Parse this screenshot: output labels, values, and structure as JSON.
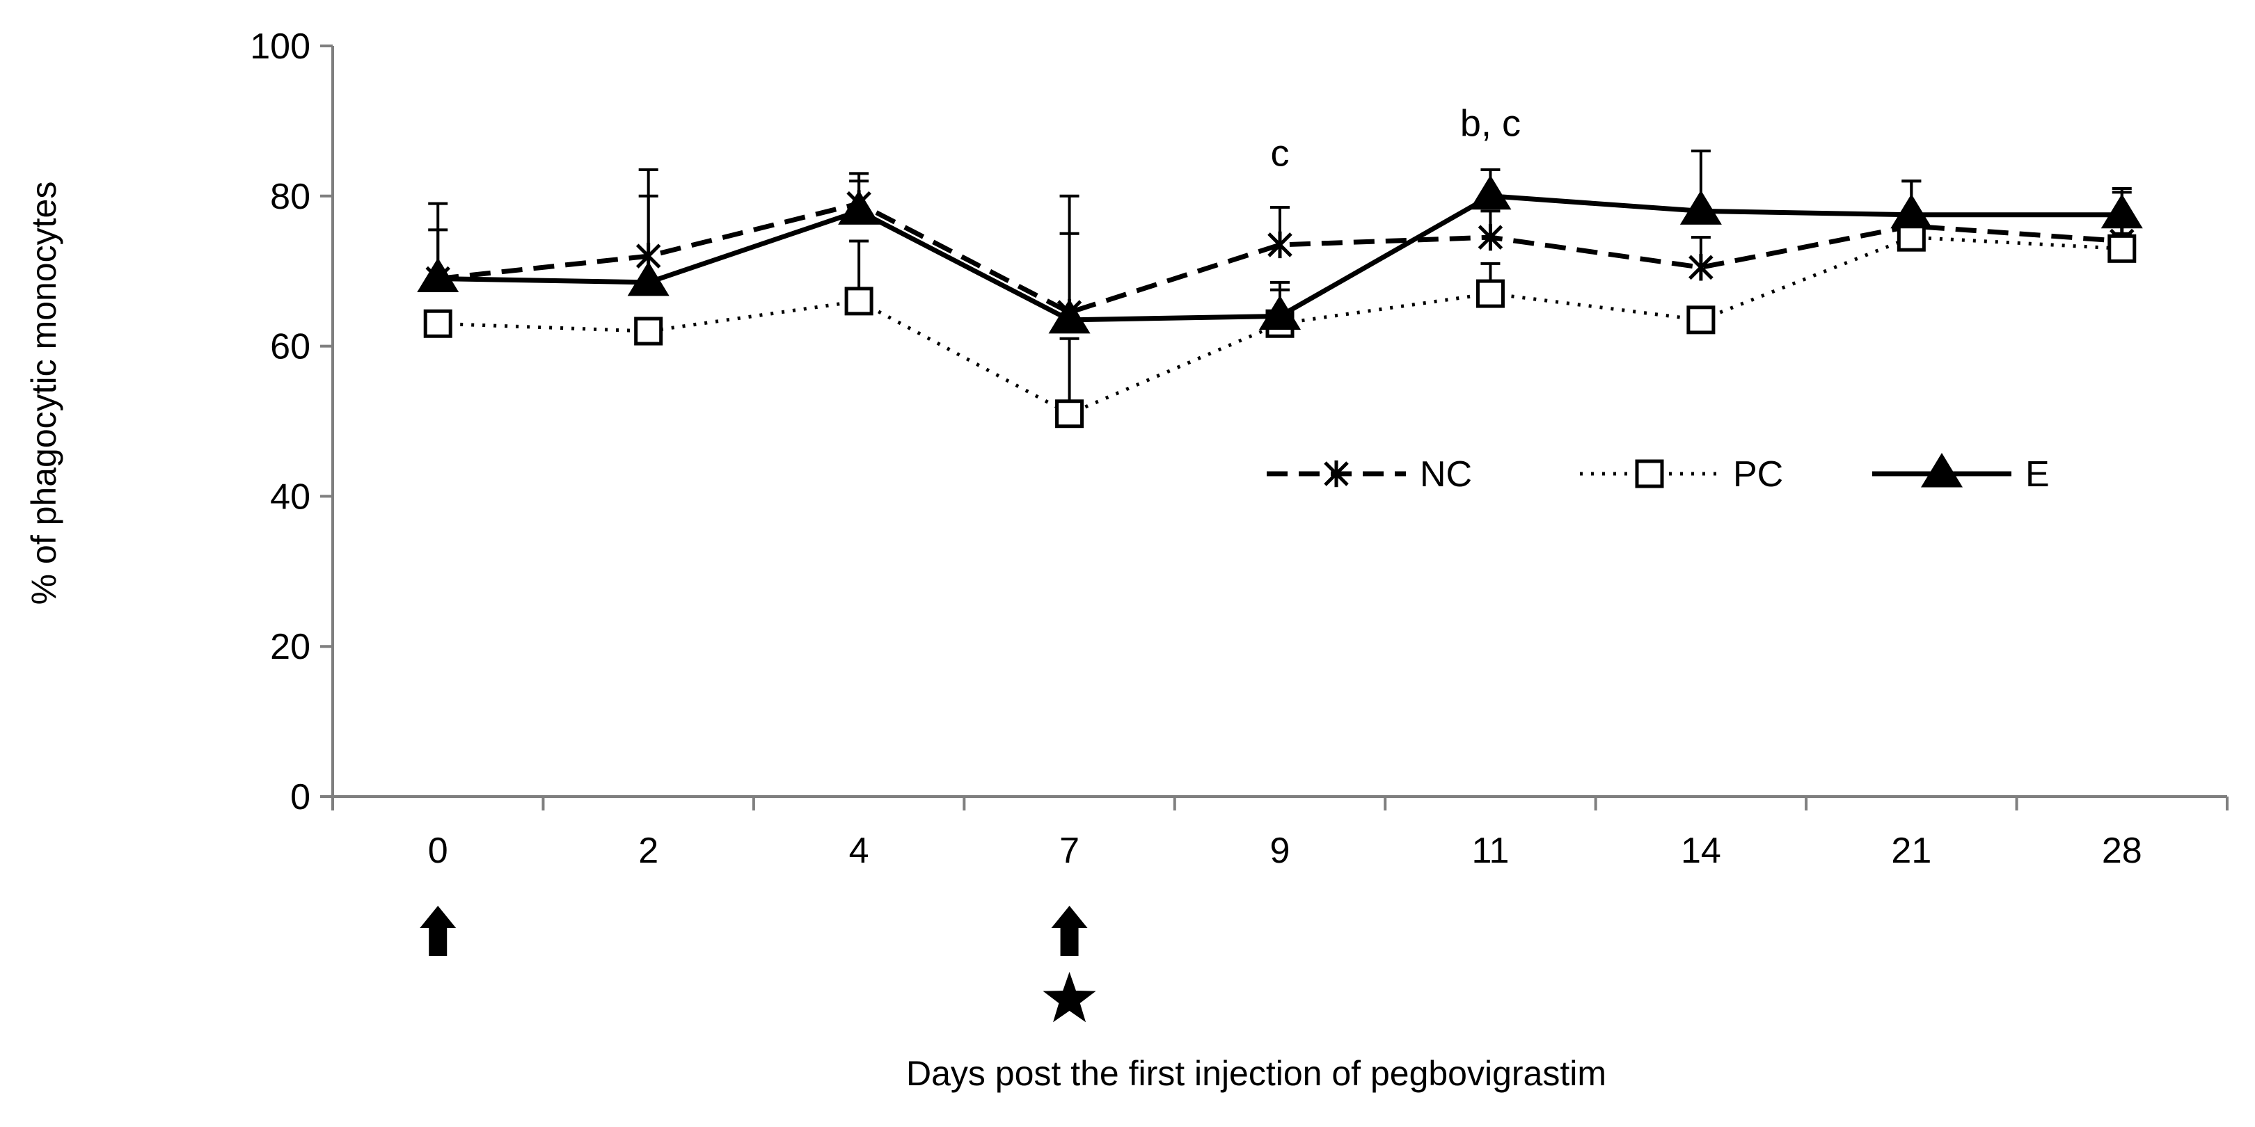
{
  "chart_data": {
    "type": "line",
    "title": "",
    "xlabel": "Days post the first injection of pegbovigrastim",
    "ylabel": "% of phagocytic monocytes",
    "ylim": [
      0,
      100
    ],
    "yticks": [
      "0",
      "20",
      "40",
      "60",
      "80",
      "100"
    ],
    "categories": [
      "0",
      "2",
      "4",
      "7",
      "9",
      "11",
      "14",
      "21",
      "28"
    ],
    "grid": false,
    "legend_position": "inside-right",
    "series": [
      {
        "name": "NC",
        "line_style": "dashed",
        "marker": "asterisk",
        "values": [
          69,
          72,
          79,
          64.5,
          73.5,
          74.5,
          70.5,
          76,
          74
        ],
        "error_up": [
          6.5,
          8,
          3,
          10.5,
          5,
          3.5,
          4,
          6,
          6.5
        ]
      },
      {
        "name": "PC",
        "line_style": "dotted",
        "marker": "open-square",
        "values": [
          63,
          62,
          66,
          51,
          63,
          67,
          63.5,
          74.5,
          73
        ],
        "error_up": [
          0,
          0,
          8,
          10,
          4.5,
          4,
          0,
          2,
          2
        ]
      },
      {
        "name": "E",
        "line_style": "solid",
        "marker": "filled-triangle",
        "values": [
          69,
          68.5,
          78,
          63.5,
          64,
          80,
          78,
          77.5,
          77.5
        ],
        "error_up": [
          10,
          15,
          5,
          16.5,
          4.5,
          3.5,
          8,
          4.5,
          3.5
        ]
      }
    ],
    "annotations": [
      {
        "category": "9",
        "text": "c",
        "y": 84
      },
      {
        "category": "11",
        "text": "b, c",
        "y": 88
      }
    ],
    "markers_below_axis": [
      {
        "category": "0",
        "symbols": [
          "arrow-up"
        ]
      },
      {
        "category": "7",
        "symbols": [
          "arrow-up",
          "star"
        ]
      }
    ],
    "colors": {
      "ink": "#000000",
      "axis": "#7f7f7f",
      "background": "#ffffff"
    }
  }
}
